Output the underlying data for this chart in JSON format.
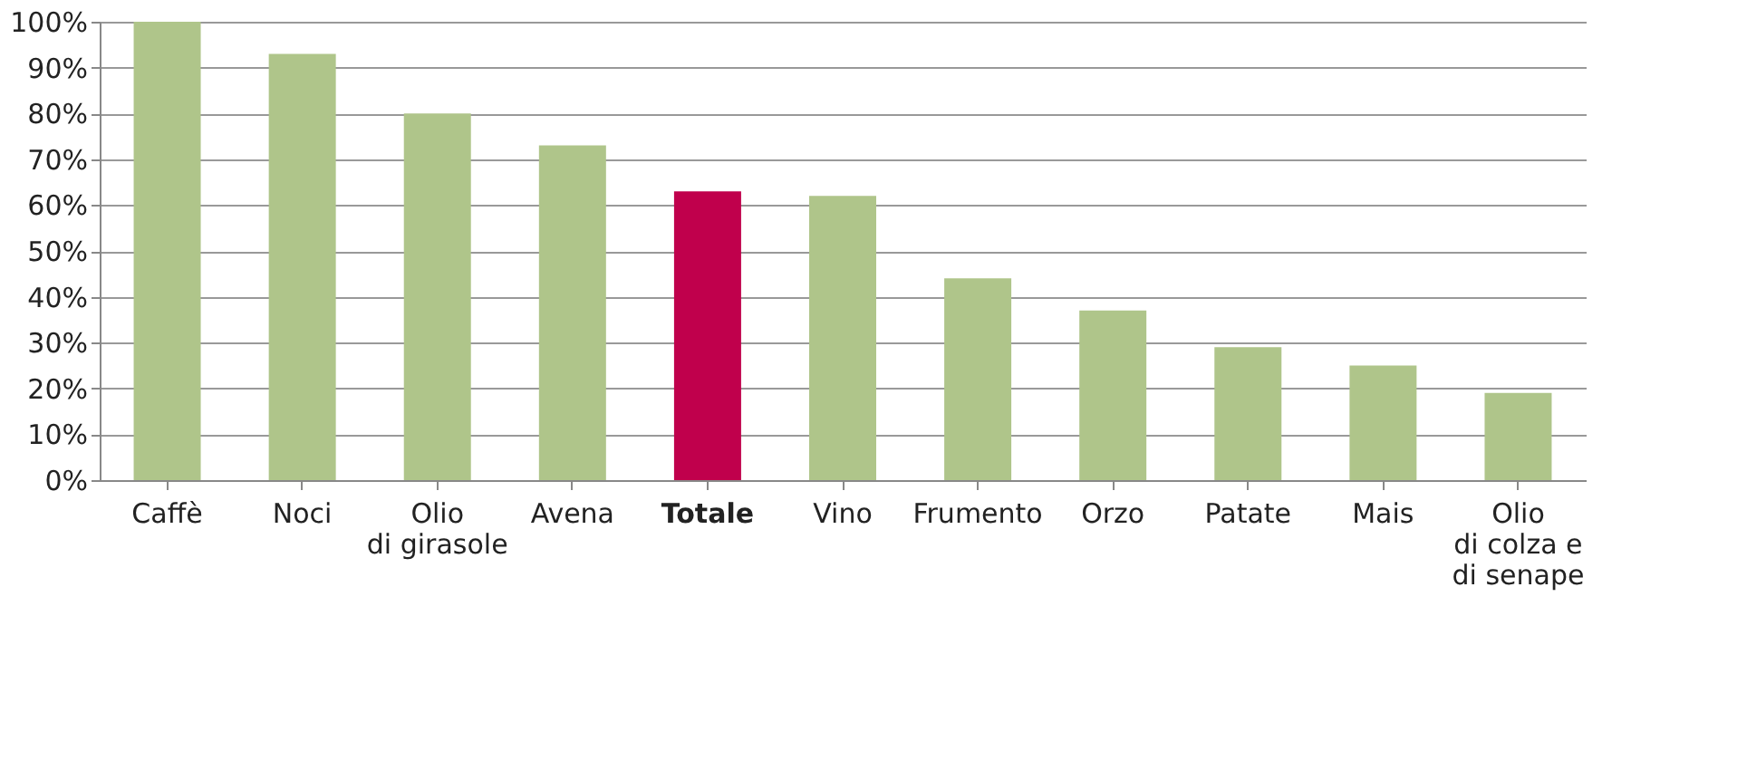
{
  "chart_data": {
    "type": "bar",
    "categories": [
      "Caffè",
      "Noci",
      "Olio\ndi girasole",
      "Avena",
      "Totale",
      "Vino",
      "Frumento",
      "Orzo",
      "Patate",
      "Mais",
      "Olio\ndi colza e\ndi senape"
    ],
    "values": [
      100,
      93,
      80,
      73,
      63,
      62,
      44,
      37,
      29,
      25,
      19
    ],
    "colors": [
      "#afc58a",
      "#afc58a",
      "#afc58a",
      "#afc58a",
      "#c0004c",
      "#afc58a",
      "#afc58a",
      "#afc58a",
      "#afc58a",
      "#afc58a",
      "#afc58a"
    ],
    "ylim": [
      0,
      100
    ],
    "yticks": [
      {
        "value": 0,
        "label": "0%"
      },
      {
        "value": 10,
        "label": "10%"
      },
      {
        "value": 20,
        "label": "20%"
      },
      {
        "value": 30,
        "label": "30%"
      },
      {
        "value": 40,
        "label": "40%"
      },
      {
        "value": 50,
        "label": "50%"
      },
      {
        "value": 60,
        "label": "60%"
      },
      {
        "value": 70,
        "label": "70%"
      },
      {
        "value": 80,
        "label": "80%"
      },
      {
        "value": 90,
        "label": "90%"
      },
      {
        "value": 100,
        "label": "100%"
      }
    ],
    "grid": "y"
  }
}
